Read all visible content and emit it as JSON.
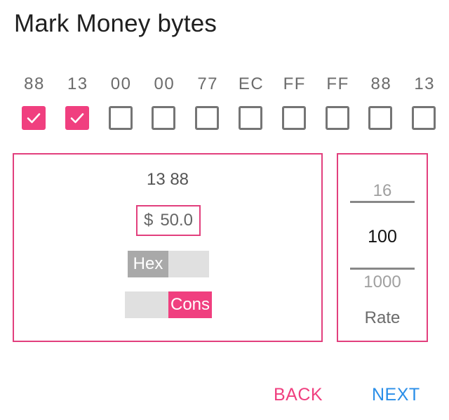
{
  "title": "Mark Money bytes",
  "colors": {
    "accent": "#f03f7f",
    "border": "#e23f7d",
    "next_button": "#2a8ee8",
    "toggle_off": "#a9a9a9"
  },
  "bytes": [
    {
      "label": "88",
      "checked": true
    },
    {
      "label": "13",
      "checked": true
    },
    {
      "label": "00",
      "checked": false
    },
    {
      "label": "00",
      "checked": false
    },
    {
      "label": "77",
      "checked": false
    },
    {
      "label": "EC",
      "checked": false
    },
    {
      "label": "FF",
      "checked": false
    },
    {
      "label": "FF",
      "checked": false
    },
    {
      "label": "88",
      "checked": false
    },
    {
      "label": "13",
      "checked": false
    }
  ],
  "check_icon": "check-icon",
  "value_panel": {
    "hex": "13 88",
    "currency": "$",
    "amount": "50.0",
    "hex_toggle_label": "Hex",
    "cons_toggle_label": "Cons"
  },
  "rate_picker": {
    "prev": "16",
    "current": "100",
    "next": "1000",
    "label": "Rate"
  },
  "actions": {
    "back_label": "BACK",
    "next_label": "NEXT"
  }
}
